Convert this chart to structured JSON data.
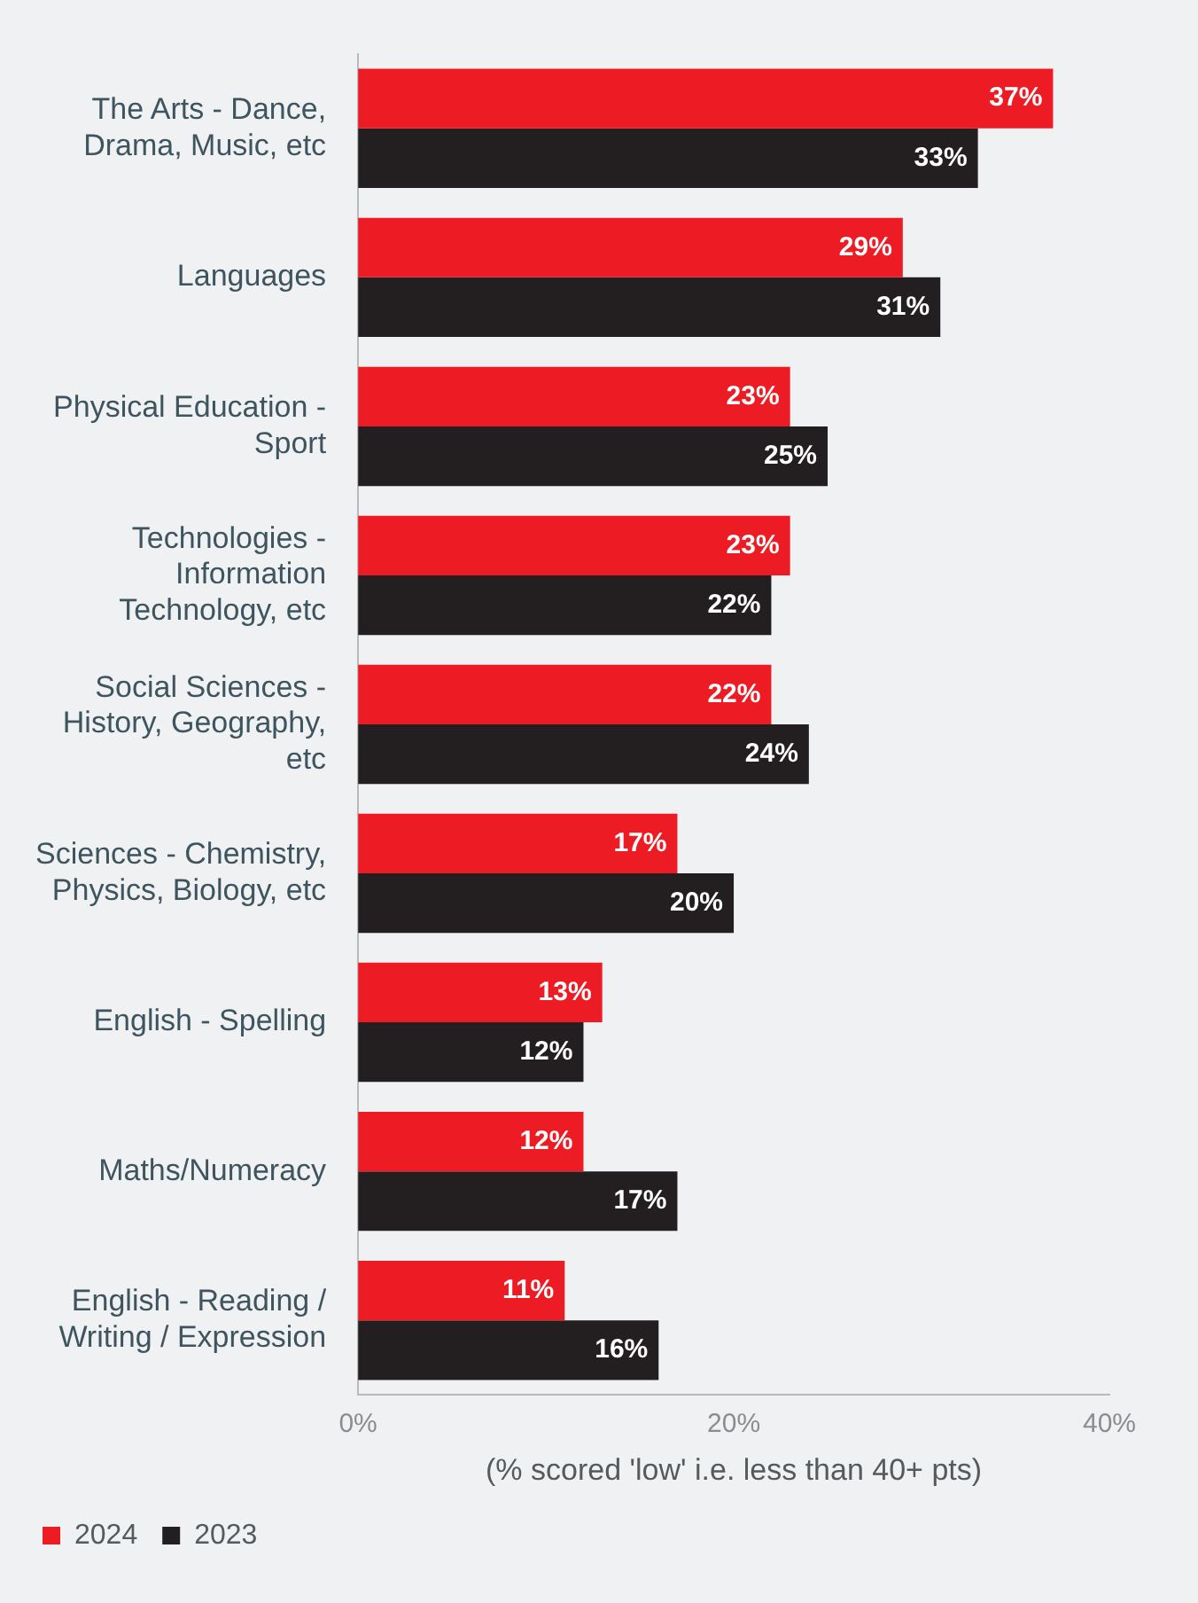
{
  "chart_data": {
    "type": "bar",
    "orientation": "horizontal",
    "xlabel": "(% scored 'low' i.e. less than 40+ pts)",
    "categories": [
      "The Arts - Dance, Drama, Music, etc",
      "Languages",
      "Physical Education - Sport",
      "Technologies - Information Technology, etc",
      "Social Sciences - History, Geography, etc",
      "Sciences - Chemistry, Physics, Biology, etc",
      "English - Spelling",
      "Maths/Numeracy",
      "English - Reading / Writing / Expression"
    ],
    "series": [
      {
        "name": "2024",
        "color": "#ed1c24",
        "values": [
          37,
          29,
          23,
          23,
          22,
          17,
          13,
          12,
          11
        ],
        "value_labels": [
          "37%",
          "29%",
          "23%",
          "23%",
          "22%",
          "17%",
          "13%",
          "12%",
          "11%"
        ]
      },
      {
        "name": "2023",
        "color": "#231f20",
        "values": [
          33,
          31,
          25,
          22,
          24,
          20,
          12,
          17,
          16
        ],
        "value_labels": [
          "33%",
          "31%",
          "25%",
          "22%",
          "24%",
          "20%",
          "12%",
          "17%",
          "16%"
        ]
      }
    ],
    "xlim": [
      0,
      40
    ],
    "xticks": [
      {
        "value": 0,
        "label": "0%"
      },
      {
        "value": 20,
        "label": "20%"
      },
      {
        "value": 40,
        "label": "40%"
      }
    ],
    "grid": false,
    "legend": "bottom left"
  }
}
